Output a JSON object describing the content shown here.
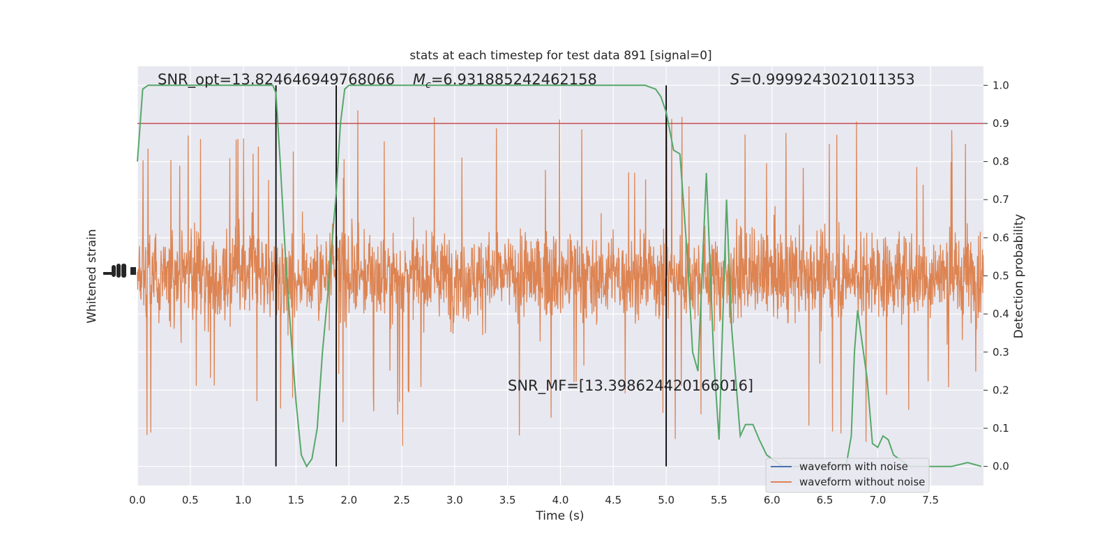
{
  "chart_data": {
    "type": "line",
    "title": "stats at each timestep for test data 891 [signal=0]",
    "xlabel": "Time (s)",
    "ylabel_left": "Whitened strain",
    "ylabel_right": "Detection probability",
    "xlim": [
      0.0,
      8.0
    ],
    "ylim_right": [
      -0.05,
      1.05
    ],
    "x_ticks": [
      "0.0",
      "0.5",
      "1.0",
      "1.5",
      "2.0",
      "2.5",
      "3.0",
      "3.5",
      "4.0",
      "4.5",
      "5.0",
      "5.5",
      "6.0",
      "6.5",
      "7.0",
      "7.5"
    ],
    "x_tick_values": [
      0,
      0.5,
      1,
      1.5,
      2,
      2.5,
      3,
      3.5,
      4,
      4.5,
      5,
      5.5,
      6,
      6.5,
      7,
      7.5
    ],
    "y_right_ticks": [
      "0.0",
      "0.1",
      "0.2",
      "0.3",
      "0.4",
      "0.5",
      "0.6",
      "0.7",
      "0.8",
      "0.9",
      "1.0"
    ],
    "y_right_tick_values": [
      0,
      0.1,
      0.2,
      0.3,
      0.4,
      0.5,
      0.6,
      0.7,
      0.8,
      0.9,
      1.0
    ],
    "y_left_ticks_visible": "overlapping illegible tick labels",
    "grid": true,
    "background_color": "#e8e8f0",
    "annotations": {
      "snr_opt": "SNR_opt=13.824646949768066",
      "mc_symbol": "M",
      "mc_subscript": "c",
      "mc_value": "=6.931885242462158",
      "s_symbol": "S",
      "s_value": "=0.9999243021011353",
      "snr_mf": "SNR_MF=[13.398624420166016]"
    },
    "threshold": {
      "value": 0.9,
      "color": "#c44e52"
    },
    "vertical_lines_x": [
      1.31,
      1.88,
      5.0
    ],
    "series": [
      {
        "name": "waveform with noise",
        "color": "#4c72b0",
        "kind": "strain",
        "visible": "hidden behind orange trace"
      },
      {
        "name": "waveform without noise",
        "color": "#dd8452",
        "kind": "strain",
        "envelope_center": 0.5,
        "typical_band": [
          0.27,
          0.73
        ],
        "peak_range": [
          0.05,
          1.0
        ]
      }
    ],
    "probability_series": {
      "color": "#55a868",
      "x": [
        0.0,
        0.05,
        0.1,
        0.2,
        0.4,
        0.6,
        0.8,
        1.0,
        1.2,
        1.28,
        1.31,
        1.35,
        1.4,
        1.45,
        1.5,
        1.55,
        1.6,
        1.65,
        1.7,
        1.75,
        1.8,
        1.85,
        1.88,
        1.92,
        1.96,
        2.0,
        2.05,
        2.2,
        2.5,
        2.8,
        3.0,
        3.2,
        3.5,
        4.0,
        4.5,
        4.7,
        4.8,
        4.9,
        4.95,
        5.0,
        5.07,
        5.13,
        5.2,
        5.25,
        5.3,
        5.38,
        5.45,
        5.5,
        5.57,
        5.62,
        5.7,
        5.75,
        5.82,
        5.88,
        5.95,
        6.0,
        6.1,
        6.2,
        6.4,
        6.6,
        6.7,
        6.75,
        6.78,
        6.81,
        6.85,
        6.9,
        6.95,
        7.0,
        7.05,
        7.1,
        7.15,
        7.2,
        7.3,
        7.4,
        7.5,
        7.7,
        7.85,
        7.98
      ],
      "y": [
        0.8,
        0.99,
        1.0,
        1.0,
        1.0,
        1.0,
        1.0,
        1.0,
        1.0,
        1.0,
        0.98,
        0.8,
        0.55,
        0.35,
        0.17,
        0.03,
        0.0,
        0.02,
        0.1,
        0.3,
        0.45,
        0.62,
        0.72,
        0.9,
        0.99,
        1.0,
        1.0,
        1.0,
        1.0,
        1.0,
        1.0,
        1.0,
        1.0,
        1.0,
        1.0,
        1.0,
        1.0,
        0.99,
        0.97,
        0.93,
        0.83,
        0.82,
        0.55,
        0.3,
        0.25,
        0.77,
        0.28,
        0.07,
        0.7,
        0.36,
        0.08,
        0.11,
        0.11,
        0.07,
        0.03,
        0.02,
        0.0,
        0.0,
        0.0,
        0.0,
        0.0,
        0.08,
        0.3,
        0.41,
        0.33,
        0.23,
        0.06,
        0.05,
        0.08,
        0.07,
        0.03,
        0.02,
        0.0,
        0.0,
        0.0,
        0.0,
        0.01,
        0.0
      ]
    },
    "legend_position": "lower-right"
  }
}
